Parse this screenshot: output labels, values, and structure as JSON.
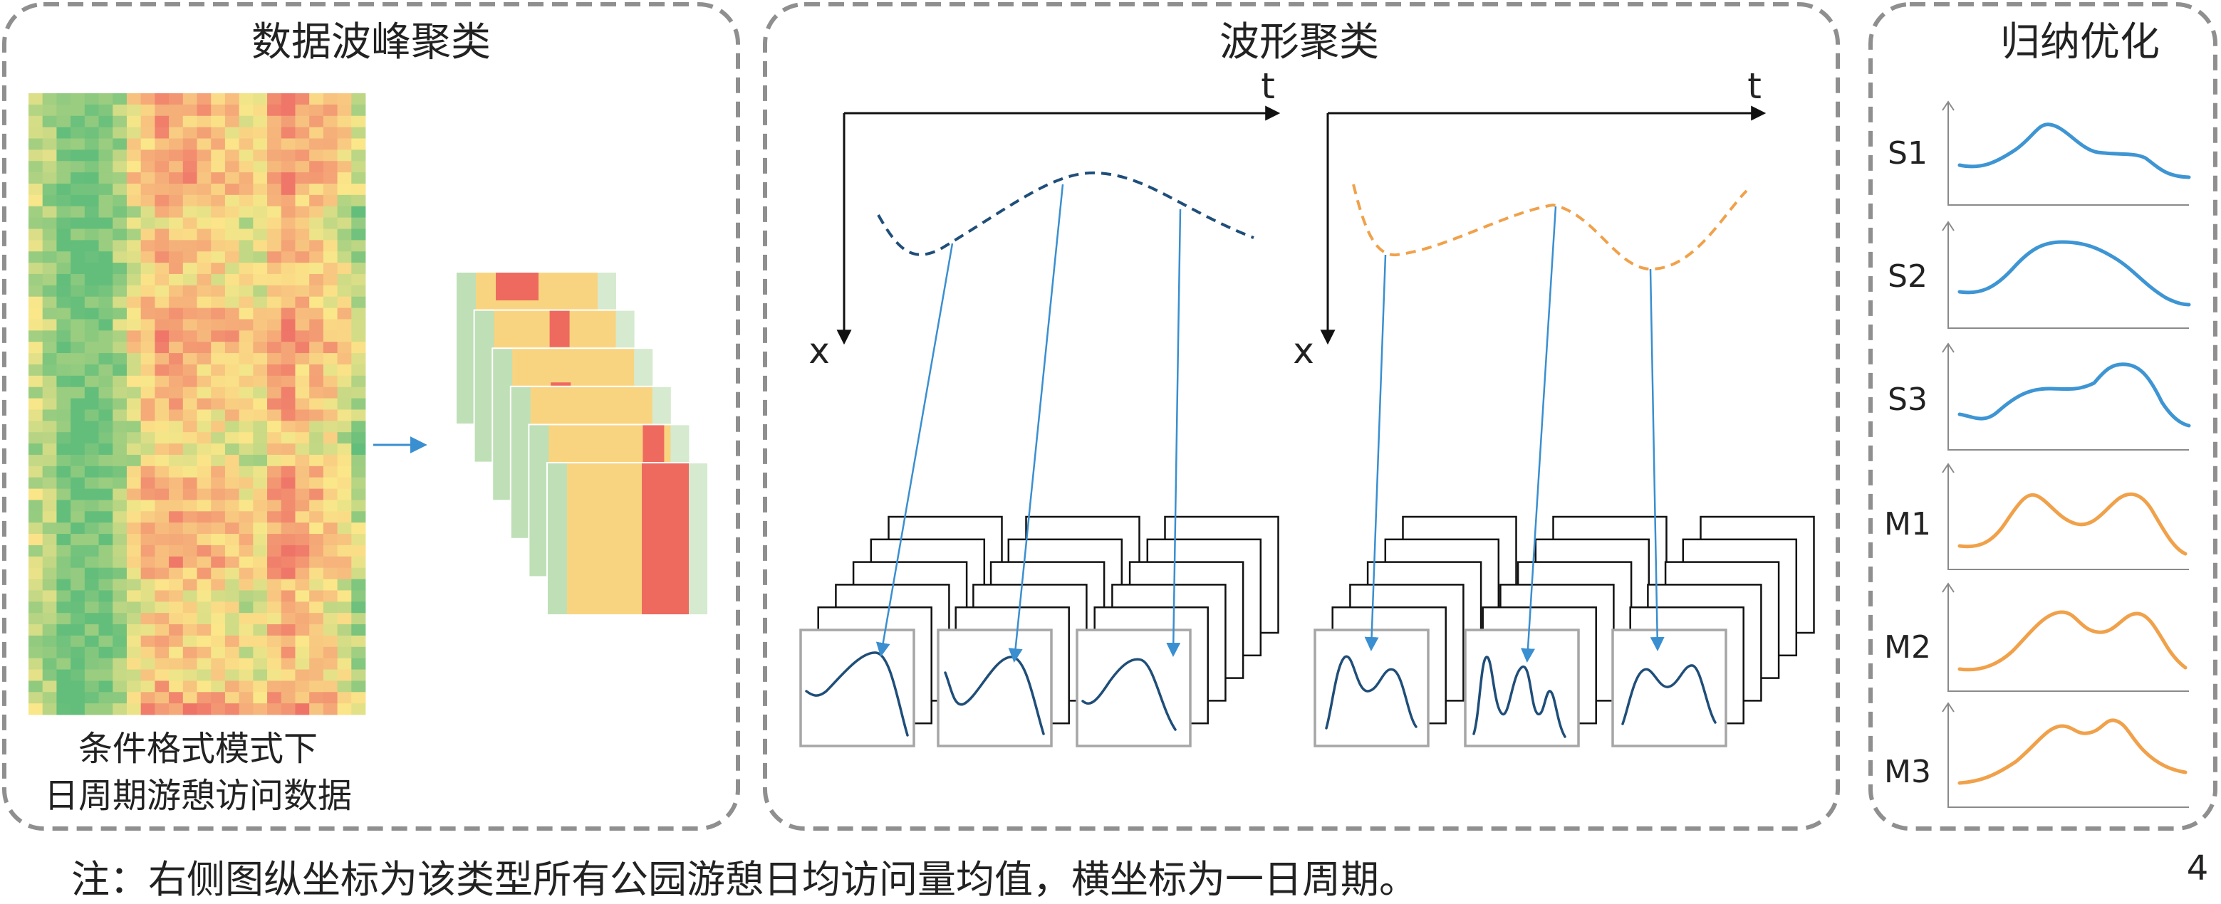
{
  "panels": {
    "peak_clustering": {
      "title": "数据波峰聚类",
      "caption_line1": "条件格式模式下",
      "caption_line2": "日周期游憩访问数据"
    },
    "waveform_clustering": {
      "title": "波形聚类",
      "left_axes": {
        "t_label": "t",
        "x_label": "x"
      },
      "right_axes": {
        "t_label": "t",
        "x_label": "x"
      }
    },
    "summary_optimization": {
      "title": "归纳优化",
      "series_labels": [
        "S1",
        "S2",
        "S3",
        "M1",
        "M2",
        "M3"
      ]
    }
  },
  "footnote": "注：右侧图纵坐标为该类型所有公园游憩日均访问量均值，横坐标为一日周期。",
  "page_number": "4",
  "colors": {
    "panel_border": "#8f8f8f",
    "heatmap_low": "#63be7b",
    "heatmap_mid": "#fbe78a",
    "heatmap_high": "#ef7468",
    "card_green": "#bfdfb6",
    "card_yellow": "#f9d480",
    "card_red": "#ee6a5f",
    "card_light_green": "#d5eacf",
    "single_peak_curve": "#1f4e79",
    "double_peak_curve": "#f0a14a",
    "s_series": "#3e95d3",
    "m_series": "#f0a14a",
    "arrow": "#3a8fd0",
    "axis": "#111111"
  }
}
